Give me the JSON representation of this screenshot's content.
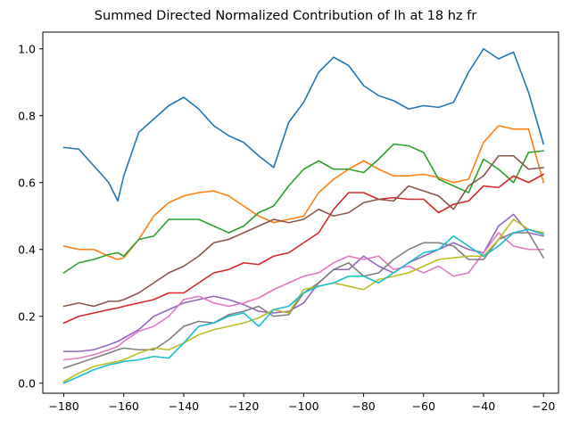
{
  "chart_data": {
    "type": "line",
    "title": "Summed Directed Normalized Contribution of Ih at 18 hz fr",
    "xlabel": "",
    "ylabel": "",
    "xlim": [
      -187,
      -15
    ],
    "ylim": [
      -0.03,
      1.05
    ],
    "xticks": [
      -180,
      -160,
      -140,
      -120,
      -100,
      -80,
      -60,
      -40,
      -20
    ],
    "yticks": [
      0.0,
      0.2,
      0.4,
      0.6,
      0.8,
      1.0
    ],
    "xtick_labels": [
      "−180",
      "−160",
      "−140",
      "−120",
      "−100",
      "−80",
      "−60",
      "−40",
      "−20"
    ],
    "ytick_labels": [
      "0.0",
      "0.2",
      "0.4",
      "0.6",
      "0.8",
      "1.0"
    ],
    "grid": false,
    "legend": "none",
    "x": [
      -180,
      -175,
      -170,
      -165,
      -162,
      -160,
      -155,
      -150,
      -145,
      -140,
      -135,
      -130,
      -125,
      -120,
      -115,
      -110,
      -105,
      -100,
      -95,
      -90,
      -85,
      -80,
      -75,
      -70,
      -65,
      -60,
      -55,
      -50,
      -45,
      -40,
      -35,
      -30,
      -25,
      -20
    ],
    "series": [
      {
        "color": "#1f77b4",
        "values": [
          0.705,
          0.7,
          0.65,
          0.6,
          0.545,
          0.62,
          0.75,
          0.79,
          0.83,
          0.855,
          0.82,
          0.77,
          0.74,
          0.72,
          0.68,
          0.645,
          0.78,
          0.84,
          0.93,
          0.975,
          0.95,
          0.89,
          0.86,
          0.845,
          0.82,
          0.83,
          0.825,
          0.84,
          0.93,
          1.0,
          0.97,
          0.99,
          0.87,
          0.715
        ]
      },
      {
        "color": "#ff7f0e",
        "values": [
          0.41,
          0.4,
          0.4,
          0.38,
          0.37,
          0.375,
          0.43,
          0.5,
          0.54,
          0.56,
          0.57,
          0.575,
          0.56,
          0.53,
          0.5,
          0.48,
          0.49,
          0.5,
          0.57,
          0.61,
          0.64,
          0.665,
          0.64,
          0.62,
          0.62,
          0.625,
          0.615,
          0.6,
          0.61,
          0.72,
          0.77,
          0.76,
          0.76,
          0.6
        ]
      },
      {
        "color": "#2ca02c",
        "values": [
          0.33,
          0.36,
          0.37,
          0.385,
          0.39,
          0.38,
          0.43,
          0.44,
          0.49,
          0.49,
          0.49,
          0.47,
          0.45,
          0.47,
          0.51,
          0.53,
          0.59,
          0.64,
          0.665,
          0.64,
          0.64,
          0.63,
          0.67,
          0.715,
          0.71,
          0.69,
          0.61,
          0.59,
          0.57,
          0.67,
          0.64,
          0.6,
          0.69,
          0.695
        ]
      },
      {
        "color": "#d62728",
        "values": [
          0.18,
          0.2,
          0.21,
          0.22,
          0.225,
          0.23,
          0.24,
          0.25,
          0.27,
          0.27,
          0.3,
          0.33,
          0.34,
          0.36,
          0.355,
          0.38,
          0.39,
          0.42,
          0.45,
          0.52,
          0.57,
          0.57,
          0.55,
          0.555,
          0.55,
          0.55,
          0.51,
          0.535,
          0.545,
          0.59,
          0.585,
          0.62,
          0.6,
          0.625
        ]
      },
      {
        "color": "#9467bd",
        "values": [
          0.095,
          0.095,
          0.1,
          0.115,
          0.125,
          0.135,
          0.16,
          0.2,
          0.22,
          0.24,
          0.25,
          0.26,
          0.25,
          0.235,
          0.215,
          0.21,
          0.215,
          0.24,
          0.3,
          0.34,
          0.34,
          0.38,
          0.35,
          0.33,
          0.36,
          0.38,
          0.4,
          0.42,
          0.4,
          0.39,
          0.47,
          0.505,
          0.45,
          0.44
        ]
      },
      {
        "color": "#8c564b",
        "values": [
          0.23,
          0.24,
          0.23,
          0.245,
          0.245,
          0.25,
          0.27,
          0.3,
          0.33,
          0.35,
          0.38,
          0.42,
          0.43,
          0.45,
          0.47,
          0.49,
          0.48,
          0.49,
          0.52,
          0.5,
          0.51,
          0.54,
          0.55,
          0.545,
          0.59,
          0.575,
          0.56,
          0.52,
          0.59,
          0.62,
          0.68,
          0.68,
          0.64,
          0.645
        ]
      },
      {
        "color": "#e377c2",
        "values": [
          0.07,
          0.075,
          0.085,
          0.1,
          0.11,
          0.125,
          0.155,
          0.17,
          0.2,
          0.25,
          0.26,
          0.24,
          0.23,
          0.24,
          0.255,
          0.28,
          0.3,
          0.32,
          0.33,
          0.36,
          0.38,
          0.37,
          0.38,
          0.34,
          0.35,
          0.33,
          0.35,
          0.32,
          0.33,
          0.39,
          0.45,
          0.41,
          0.4,
          0.4
        ]
      },
      {
        "color": "#7f7f7f",
        "values": [
          0.045,
          0.06,
          0.075,
          0.09,
          0.1,
          0.105,
          0.1,
          0.1,
          0.13,
          0.17,
          0.185,
          0.18,
          0.205,
          0.215,
          0.23,
          0.2,
          0.205,
          0.27,
          0.3,
          0.34,
          0.36,
          0.32,
          0.33,
          0.37,
          0.4,
          0.42,
          0.42,
          0.41,
          0.37,
          0.37,
          0.43,
          0.45,
          0.45,
          0.375
        ]
      },
      {
        "color": "#bcbd22",
        "values": [
          0.005,
          0.03,
          0.05,
          0.06,
          0.065,
          0.07,
          0.09,
          0.105,
          0.1,
          0.12,
          0.145,
          0.16,
          0.17,
          0.18,
          0.195,
          0.22,
          0.21,
          0.28,
          0.29,
          0.3,
          0.29,
          0.28,
          0.31,
          0.32,
          0.33,
          0.35,
          0.37,
          0.375,
          0.38,
          0.38,
          0.43,
          0.49,
          0.46,
          0.45
        ]
      },
      {
        "color": "#17becf",
        "values": [
          0.0,
          0.02,
          0.04,
          0.055,
          0.06,
          0.065,
          0.07,
          0.08,
          0.075,
          0.12,
          0.17,
          0.18,
          0.2,
          0.21,
          0.17,
          0.22,
          0.23,
          0.27,
          0.29,
          0.3,
          0.32,
          0.32,
          0.3,
          0.33,
          0.36,
          0.39,
          0.4,
          0.44,
          0.41,
          0.38,
          0.41,
          0.45,
          0.46,
          0.445
        ]
      }
    ]
  }
}
